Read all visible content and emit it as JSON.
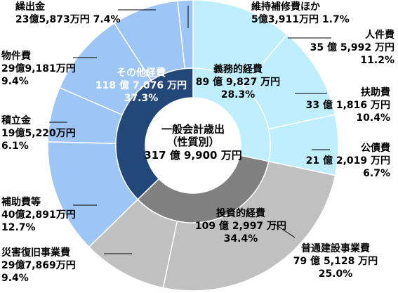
{
  "chart_data": {
    "type": "pie",
    "center": {
      "line1": "一般会計歳出",
      "line2": "（性質別）",
      "line3": "317 億 9,900 万円"
    },
    "inner": [
      {
        "name": "義務的経費",
        "amount": "89 億 9,827 万円",
        "percent": "28.3%",
        "value": 28.3,
        "color": "#bfefff",
        "text_color": "#000000"
      },
      {
        "name": "投資的経費",
        "amount": "109 億 2,997 万円",
        "percent": "34.4%",
        "value": 34.4,
        "color": "#808080",
        "text_color": "#000000"
      },
      {
        "name": "その他経費",
        "amount": "118 億 7,076 万円",
        "percent": "37.3%",
        "value": 37.3,
        "color": "#24477a",
        "text_color": "#ffffff"
      }
    ],
    "outer": [
      {
        "name": "人件費",
        "amount": "35 億 5,992 万円",
        "percent": "11.2%",
        "value": 11.2,
        "color": "#bfefff"
      },
      {
        "name": "扶助費",
        "amount": "33 億 1,816 万円",
        "percent": "10.4%",
        "value": 10.4,
        "color": "#bfefff"
      },
      {
        "name": "公債費",
        "amount": "21 億 2,019 万円",
        "percent": "6.7%",
        "value": 6.7,
        "color": "#bfefff"
      },
      {
        "name": "普通建設事業費",
        "amount": "79 億 5,128 万円",
        "percent": "25.0%",
        "value": 25.0,
        "color": "#c0c0c0"
      },
      {
        "name": "災害復旧事業費",
        "amount": "29億7,869万円",
        "percent": "9.4%",
        "value": 9.4,
        "color": "#c0c0c0"
      },
      {
        "name": "補助費等",
        "amount": "40億2,891万円",
        "percent": "12.7%",
        "value": 12.7,
        "color": "#9dc5f5"
      },
      {
        "name": "積立金",
        "amount": "19億5,220万円",
        "percent": "6.1%",
        "value": 6.1,
        "color": "#9dc5f5"
      },
      {
        "name": "物件費",
        "amount": "29億9,181万円",
        "percent": "9.4%",
        "value": 9.4,
        "color": "#9dc5f5"
      },
      {
        "name": "繰出金",
        "amount": "23億5,873万円",
        "percent": "7.4%",
        "value": 7.4,
        "color": "#9dc5f5"
      },
      {
        "name": "維持補修費ほか",
        "amount": "5億3,911万円",
        "percent": "1.7%",
        "value": 1.7,
        "color": "#9dc5f5"
      }
    ]
  }
}
